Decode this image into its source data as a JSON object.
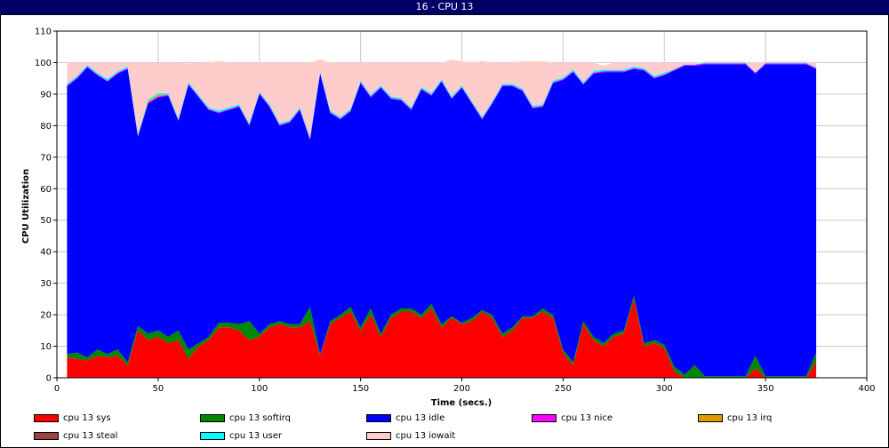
{
  "window": {
    "title": "16 - CPU 13"
  },
  "chart_data": {
    "type": "area",
    "stacked": true,
    "title": "",
    "xlabel": "Time (secs.)",
    "ylabel": "CPU Utilization",
    "xlim": [
      0,
      400
    ],
    "ylim": [
      0,
      110
    ],
    "xticks": [
      0,
      50,
      100,
      150,
      200,
      250,
      300,
      350,
      400
    ],
    "yticks": [
      0,
      10,
      20,
      30,
      40,
      50,
      60,
      70,
      80,
      90,
      100,
      110
    ],
    "grid": true,
    "legend_position": "bottom",
    "x": [
      5,
      10,
      15,
      20,
      25,
      30,
      35,
      40,
      45,
      50,
      55,
      60,
      65,
      70,
      75,
      80,
      85,
      90,
      95,
      100,
      105,
      110,
      115,
      120,
      125,
      130,
      135,
      140,
      145,
      150,
      155,
      160,
      165,
      170,
      175,
      180,
      185,
      190,
      195,
      200,
      205,
      210,
      215,
      220,
      225,
      230,
      235,
      240,
      245,
      250,
      255,
      260,
      265,
      270,
      275,
      280,
      285,
      290,
      295,
      300,
      305,
      310,
      315,
      320,
      325,
      330,
      335,
      340,
      345,
      350,
      355,
      360,
      365,
      370,
      375
    ],
    "series": [
      {
        "name": "cpu 13 sys",
        "color": "#ff0000",
        "values": [
          6.5,
          6,
          5.5,
          7,
          6.5,
          7,
          4,
          15,
          12,
          13,
          11,
          12,
          6,
          10,
          12,
          16,
          16,
          15,
          12,
          13,
          16,
          17,
          16,
          16,
          18,
          7,
          17,
          19,
          21,
          15,
          20,
          13,
          19,
          21,
          21,
          19,
          22,
          16,
          19,
          17,
          18,
          21,
          19,
          13,
          15,
          19,
          19,
          21,
          19,
          8,
          4,
          17,
          12,
          10,
          13,
          14,
          25,
          10,
          11,
          9.5,
          2,
          0,
          0,
          0,
          0,
          0,
          0,
          0,
          3,
          0,
          0,
          0,
          0,
          0,
          5
        ]
      },
      {
        "name": "cpu 13 softirq",
        "color": "#008800",
        "values": [
          1,
          2,
          1,
          2,
          1,
          2,
          1,
          1.5,
          2,
          2,
          2,
          3,
          3,
          1,
          1,
          1.5,
          1.5,
          2,
          6,
          1,
          1,
          1,
          1,
          1,
          4.5,
          0.5,
          1,
          1,
          1.5,
          1,
          2,
          1,
          1,
          1,
          1,
          1,
          1.5,
          1,
          0.5,
          0.5,
          1,
          0.5,
          1,
          1,
          1,
          0.5,
          0.5,
          1,
          1,
          1,
          1,
          1,
          1,
          1,
          1,
          1,
          1,
          1,
          1,
          1,
          1.5,
          1,
          4,
          0.5,
          0.5,
          0.5,
          0.5,
          0.5,
          4,
          0.5,
          0.5,
          0.5,
          0.5,
          0.5,
          3
        ]
      },
      {
        "name": "cpu 13 idle",
        "color": "#0000ff",
        "values": [
          85,
          87,
          92,
          87,
          86.5,
          87.5,
          93,
          60,
          73,
          74,
          76.5,
          66.5,
          84,
          78,
          72,
          66.5,
          67.5,
          69,
          62,
          76,
          69,
          62,
          64,
          68,
          53,
          89,
          66,
          62,
          62,
          77.5,
          67,
          78,
          68.5,
          66,
          63,
          71.5,
          66,
          77,
          69,
          74.5,
          68,
          60.5,
          67,
          78.5,
          76.5,
          71.5,
          66,
          64,
          73.5,
          85.5,
          92,
          75,
          83.5,
          86,
          83,
          82,
          72,
          86.5,
          83,
          85.5,
          94,
          98,
          95,
          99,
          99,
          99,
          99,
          99,
          89.5,
          99,
          99,
          99,
          99,
          99,
          90
        ]
      },
      {
        "name": "cpu 13 nice",
        "color": "#ff00ff",
        "values": [
          0.3,
          0.3,
          0.3,
          0.3,
          0.3,
          0.3,
          0.3,
          0.3,
          0.3,
          0.3,
          0.3,
          0.3,
          0.3,
          0.3,
          0.3,
          0.3,
          0.3,
          0.3,
          0.3,
          0.3,
          0.3,
          0.3,
          0.3,
          0.3,
          0.3,
          0.3,
          0.3,
          0.3,
          0.3,
          0.3,
          0.3,
          0.3,
          0.3,
          0.3,
          0.3,
          0.3,
          0.3,
          0.3,
          0.3,
          0.3,
          0.3,
          0.3,
          0.3,
          0.3,
          0.3,
          0.3,
          0.3,
          0.3,
          0.3,
          0.3,
          0.3,
          0.3,
          0.3,
          0.3,
          0.3,
          0.3,
          0.3,
          0.3,
          0.3,
          0.3,
          0.3,
          0.3,
          0.3,
          0.3,
          0.3,
          0.3,
          0.3,
          0.3,
          0.3,
          0.3,
          0.3,
          0.3,
          0.3,
          0.3,
          0.3
        ]
      },
      {
        "name": "cpu 13 irq",
        "color": "#e09a00",
        "values": [
          0,
          0,
          0,
          0,
          0,
          0,
          0,
          0,
          0.5,
          0.5,
          0,
          0,
          0,
          0,
          0,
          0,
          0,
          0,
          0,
          0,
          0,
          0,
          0,
          0,
          0,
          0,
          0,
          0,
          0,
          0,
          0,
          0,
          0,
          0,
          0,
          0,
          0,
          0,
          0,
          0,
          0,
          0,
          0,
          0,
          0,
          0,
          0,
          0,
          0,
          0,
          0,
          0,
          0,
          0,
          0,
          0,
          0,
          0,
          0,
          0,
          0,
          0,
          0,
          0,
          0,
          0,
          0,
          0,
          0,
          0,
          0,
          0,
          0,
          0,
          0
        ]
      },
      {
        "name": "cpu 13 steal",
        "color": "#a04040",
        "values": [
          0,
          0,
          0,
          0,
          0,
          0,
          0,
          0,
          0,
          0,
          0,
          0,
          0,
          0,
          0,
          0,
          0,
          0,
          0,
          0,
          0,
          0,
          0,
          0,
          0,
          0,
          0,
          0,
          0,
          0,
          0,
          0,
          0,
          0,
          0,
          0,
          0,
          0,
          0,
          0,
          0,
          0,
          0,
          0,
          0,
          0,
          0,
          0,
          0,
          0,
          0,
          0,
          0,
          0,
          0,
          0,
          0,
          0,
          0,
          0,
          0,
          0,
          0,
          0,
          0,
          0,
          0,
          0,
          0,
          0,
          0,
          0,
          0,
          0,
          0
        ]
      },
      {
        "name": "cpu 13 user",
        "color": "#00ffff",
        "values": [
          0.5,
          0.5,
          0.5,
          0.5,
          0.5,
          0.5,
          0.5,
          0.5,
          0.5,
          0.5,
          0.5,
          0.5,
          0.5,
          0.5,
          0.5,
          0.5,
          0.5,
          0.5,
          0.5,
          0.5,
          0.5,
          0.5,
          0.5,
          0.5,
          0.5,
          0.5,
          0.5,
          0.5,
          0.5,
          0.5,
          0.5,
          0.5,
          0.5,
          0.5,
          0.5,
          0.5,
          0.5,
          0.5,
          0.5,
          0.5,
          0.5,
          0.5,
          0.5,
          0.5,
          0.5,
          0.5,
          0.5,
          0.5,
          0.5,
          0.5,
          0.5,
          0.5,
          0.5,
          0.5,
          0.5,
          0.5,
          0.5,
          0.5,
          0.5,
          0.5,
          0.2,
          0.2,
          0.2,
          0.2,
          0.2,
          0.2,
          0.2,
          0.2,
          0.2,
          0.2,
          0.2,
          0.2,
          0.2,
          0.2,
          0.2
        ]
      },
      {
        "name": "cpu 13 iowait",
        "color": "#ffcccc",
        "values": [
          6.7,
          4.2,
          0.7,
          3.2,
          5.2,
          2.7,
          1.2,
          22.7,
          11.7,
          9.7,
          9.7,
          17.7,
          5.9,
          10.2,
          14.2,
          15.7,
          14.2,
          13.2,
          19.2,
          9.2,
          13.2,
          19.2,
          18.2,
          14.2,
          23.7,
          3.7,
          15.2,
          17.2,
          14.7,
          5.7,
          10.2,
          7.2,
          10.7,
          11.2,
          14.2,
          7.7,
          9.7,
          5.2,
          11.7,
          7.7,
          12.2,
          17.7,
          12.2,
          6.7,
          6.7,
          8.7,
          14.2,
          13.7,
          5.7,
          4.7,
          2.2,
          6.2,
          2.7,
          1.2,
          2.2,
          2.2,
          1.2,
          1.7,
          4.2,
          3.2,
          1.9,
          0.5,
          0.5,
          0.3,
          0.3,
          0.3,
          0.3,
          0.3,
          2.9,
          0.3,
          0.3,
          0.3,
          0.3,
          0.3,
          1.5
        ]
      }
    ]
  },
  "legend": [
    {
      "label": "cpu 13 sys",
      "color": "#ff0000"
    },
    {
      "label": "cpu 13 softirq",
      "color": "#008800"
    },
    {
      "label": "cpu 13 idle",
      "color": "#0000ff"
    },
    {
      "label": "cpu 13 nice",
      "color": "#ff00ff"
    },
    {
      "label": "cpu 13 irq",
      "color": "#e09a00"
    },
    {
      "label": "cpu 13 steal",
      "color": "#a04040"
    },
    {
      "label": "cpu 13 user",
      "color": "#00ffff"
    },
    {
      "label": "cpu 13 iowait",
      "color": "#ffcccc"
    }
  ]
}
